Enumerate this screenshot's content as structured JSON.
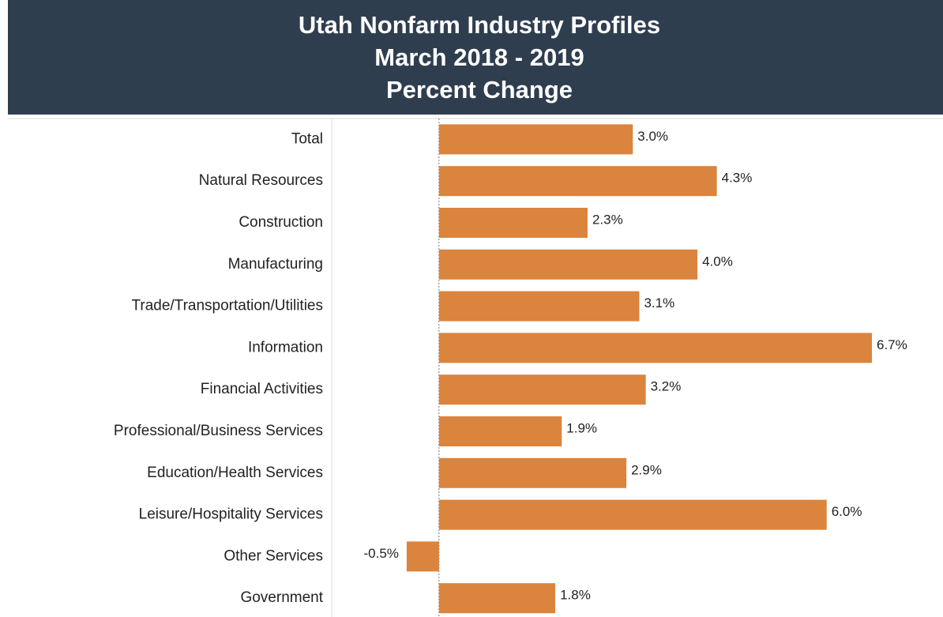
{
  "chart_data": {
    "type": "hbar",
    "title": [
      "Utah Nonfarm Industry Profiles",
      "March 2018 - 2019",
      "Percent Change"
    ],
    "categories": [
      "Total",
      "Natural Resources",
      "Construction",
      "Manufacturing",
      "Trade/Transportation/Utilities",
      "Information",
      "Financial Activities",
      "Professional/Business Services",
      "Education/Health Services",
      "Leisure/Hospitality Services",
      "Other Services",
      "Government"
    ],
    "values": [
      3.0,
      4.3,
      2.3,
      4.0,
      3.1,
      6.7,
      3.2,
      1.9,
      2.9,
      6.0,
      -0.5,
      1.8
    ],
    "value_labels": [
      "3.0%",
      "4.3%",
      "2.3%",
      "4.0%",
      "3.1%",
      "6.7%",
      "3.2%",
      "1.9%",
      "2.9%",
      "6.0%",
      "-0.5%",
      "1.8%"
    ],
    "color": "#db843d",
    "xlim": [
      -1.66,
      7.8
    ]
  }
}
